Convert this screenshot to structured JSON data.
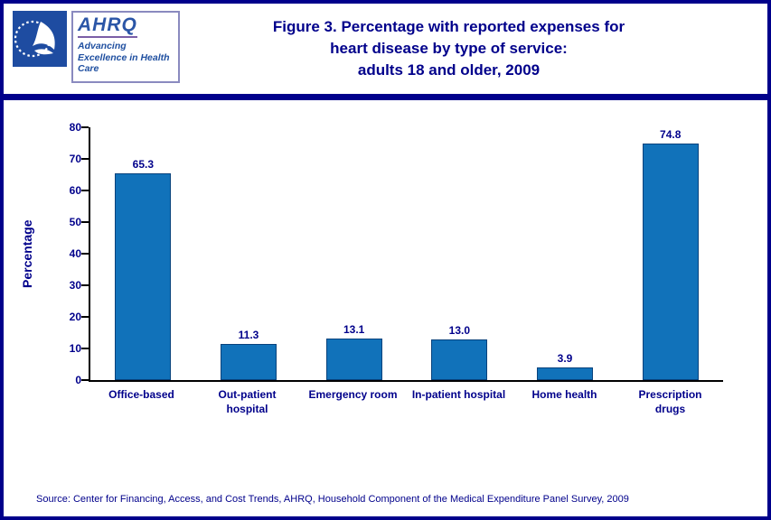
{
  "header": {
    "hhs_logo": "hhs-seal",
    "ahrq_logo_text": "AHRQ",
    "ahrq_tagline": "Advancing Excellence in Health Care",
    "title_line1": "Figure 3. Percentage with reported expenses for",
    "title_line2": "heart disease by type of service:",
    "title_line3": "adults 18 and older, 2009"
  },
  "chart_data": {
    "type": "bar",
    "categories": [
      "Office-based",
      "Out-patient\nhospital",
      "Emergency room",
      "In-patient hospital",
      "Home health",
      "Prescription\ndrugs"
    ],
    "values": [
      65.3,
      11.3,
      13.1,
      13.0,
      3.9,
      74.8
    ],
    "value_labels": [
      "65.3",
      "11.3",
      "13.1",
      "13.0",
      "3.9",
      "74.8"
    ],
    "title": "Figure 3. Percentage with reported expenses for heart disease by type of service: adults 18 and older, 2009",
    "xlabel": "",
    "ylabel": "Percentage",
    "ylim": [
      0,
      80
    ],
    "yticks": [
      0,
      10,
      20,
      30,
      40,
      50,
      60,
      70,
      80
    ],
    "grid": false,
    "legend": false,
    "bar_color": "#1172BA",
    "bar_border_color": "#08427C"
  },
  "footer": {
    "source": "Source: Center for Financing, Access, and Cost Trends, AHRQ, Household Component of the Medical Expenditure Panel Survey, 2009"
  },
  "colors": {
    "accent_navy": "#00008B",
    "title_text": "#00008B"
  }
}
